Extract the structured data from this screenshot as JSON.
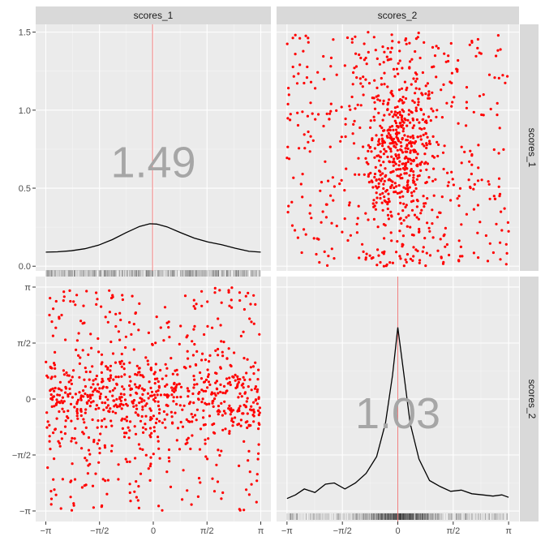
{
  "colors": {
    "panel_bg": "#EBEBEB",
    "strip_bg": "#D9D9D9",
    "grid_major": "#FFFFFF",
    "point": "#FF0000",
    "density_line": "#000000",
    "mean_line": "#F08080",
    "big_label": "#A6A6A6",
    "tick_text": "#4D4D4D"
  },
  "strips": {
    "top": [
      "scores_1",
      "scores_2"
    ],
    "right": [
      "scores_1",
      "scores_2"
    ]
  },
  "chart_data": [
    {
      "type": "area",
      "panel": "scores_1 diagonal",
      "label": "1.49",
      "x_range": [
        -3.1416,
        3.1416
      ],
      "y_range": [
        -0.03,
        1.55
      ],
      "y_ticks": [
        {
          "value": 0.0,
          "label": "0.0"
        },
        {
          "value": 0.5,
          "label": "0.5"
        },
        {
          "value": 1.0,
          "label": "1.0"
        },
        {
          "value": 1.5,
          "label": "1.5"
        }
      ],
      "mean_x": -0.02,
      "density": [
        {
          "x": -3.14,
          "y": 0.09
        },
        {
          "x": -2.8,
          "y": 0.092
        },
        {
          "x": -2.4,
          "y": 0.099
        },
        {
          "x": -2.0,
          "y": 0.112
        },
        {
          "x": -1.6,
          "y": 0.135
        },
        {
          "x": -1.2,
          "y": 0.17
        },
        {
          "x": -0.8,
          "y": 0.215
        },
        {
          "x": -0.4,
          "y": 0.255
        },
        {
          "x": -0.1,
          "y": 0.272
        },
        {
          "x": 0.1,
          "y": 0.27
        },
        {
          "x": 0.4,
          "y": 0.252
        },
        {
          "x": 0.8,
          "y": 0.215
        },
        {
          "x": 1.2,
          "y": 0.18
        },
        {
          "x": 1.6,
          "y": 0.155
        },
        {
          "x": 2.0,
          "y": 0.138
        },
        {
          "x": 2.4,
          "y": 0.115
        },
        {
          "x": 2.8,
          "y": 0.095
        },
        {
          "x": 3.14,
          "y": 0.09
        }
      ],
      "rug_spread": "uniform"
    },
    {
      "type": "scatter",
      "panel": "scores_2 vs scores_1",
      "x_range": [
        -3.1416,
        3.1416
      ],
      "y_range": [
        -0.03,
        1.55
      ],
      "n_points": 900,
      "x_distribution": "peaked at 0",
      "y_range_of_points": [
        0.0,
        1.5
      ]
    },
    {
      "type": "scatter",
      "panel": "scores_1 vs scores_2",
      "x_range": [
        -3.1416,
        3.1416
      ],
      "y_range": [
        -3.1416,
        3.1416
      ],
      "x_ticks": [
        {
          "value": -3.1416,
          "label": "−π"
        },
        {
          "value": -1.5708,
          "label": "−π/2"
        },
        {
          "value": 0,
          "label": "0"
        },
        {
          "value": 1.5708,
          "label": "π/2"
        },
        {
          "value": 3.1416,
          "label": "π"
        }
      ],
      "y_ticks": [
        {
          "value": -3.1416,
          "label": "−π"
        },
        {
          "value": -1.5708,
          "label": "−π/2"
        },
        {
          "value": 0,
          "label": "0"
        },
        {
          "value": 1.5708,
          "label": "π/2"
        },
        {
          "value": 3.1416,
          "label": "π"
        }
      ],
      "n_points": 900,
      "y_distribution": "peaked at 0"
    },
    {
      "type": "area",
      "panel": "scores_2 diagonal",
      "label": "1.03",
      "x_range": [
        -3.1416,
        3.1416
      ],
      "y_range": [
        0,
        1
      ],
      "x_ticks": [
        {
          "value": -3.1416,
          "label": "−π"
        },
        {
          "value": -1.5708,
          "label": "−π/2"
        },
        {
          "value": 0,
          "label": "0"
        },
        {
          "value": 1.5708,
          "label": "π/2"
        },
        {
          "value": 3.1416,
          "label": "π"
        }
      ],
      "mean_x": 0.0,
      "density": [
        {
          "x": -3.14,
          "y": 0.035
        },
        {
          "x": -2.9,
          "y": 0.05
        },
        {
          "x": -2.65,
          "y": 0.075
        },
        {
          "x": -2.35,
          "y": 0.06
        },
        {
          "x": -2.05,
          "y": 0.095
        },
        {
          "x": -1.8,
          "y": 0.1
        },
        {
          "x": -1.5,
          "y": 0.075
        },
        {
          "x": -1.2,
          "y": 0.1
        },
        {
          "x": -0.9,
          "y": 0.14
        },
        {
          "x": -0.6,
          "y": 0.21
        },
        {
          "x": -0.35,
          "y": 0.35
        },
        {
          "x": -0.15,
          "y": 0.55
        },
        {
          "x": 0.0,
          "y": 0.75
        },
        {
          "x": 0.15,
          "y": 0.58
        },
        {
          "x": 0.35,
          "y": 0.35
        },
        {
          "x": 0.6,
          "y": 0.2
        },
        {
          "x": 0.9,
          "y": 0.11
        },
        {
          "x": 1.2,
          "y": 0.085
        },
        {
          "x": 1.5,
          "y": 0.065
        },
        {
          "x": 1.8,
          "y": 0.07
        },
        {
          "x": 2.1,
          "y": 0.055
        },
        {
          "x": 2.4,
          "y": 0.05
        },
        {
          "x": 2.7,
          "y": 0.045
        },
        {
          "x": 2.95,
          "y": 0.05
        },
        {
          "x": 3.14,
          "y": 0.04
        }
      ],
      "rug_spread": "peaked at 0"
    }
  ]
}
